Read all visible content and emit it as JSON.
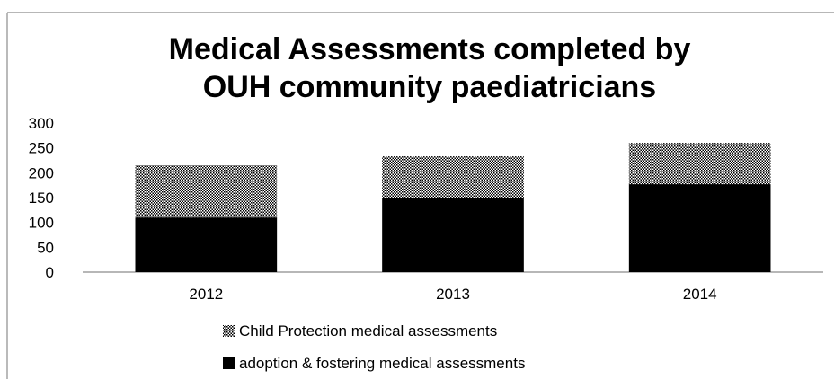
{
  "chart_data": {
    "type": "bar",
    "stacked": true,
    "title": "Medical Assessments completed by OUH community paediatricians",
    "title_lines": [
      "Medical Assessments completed by",
      "OUH community paediatricians"
    ],
    "categories": [
      "2012",
      "2013",
      "2014"
    ],
    "series": [
      {
        "name": "adoption & fostering medical assessments",
        "values": [
          110,
          150,
          177
        ],
        "color": "#000000",
        "pattern": "solid"
      },
      {
        "name": "Child Protection medical assessments",
        "values": [
          105,
          83,
          83
        ],
        "color": "#000000",
        "pattern": "dotted"
      }
    ],
    "ylim": [
      0,
      300
    ],
    "yticks": [
      "0",
      "50",
      "100",
      "150",
      "200",
      "250",
      "300"
    ],
    "grid": false,
    "legend": "bottom",
    "legend_order": [
      "Child Protection medical assessments",
      "adoption & fostering medical assessments"
    ]
  }
}
